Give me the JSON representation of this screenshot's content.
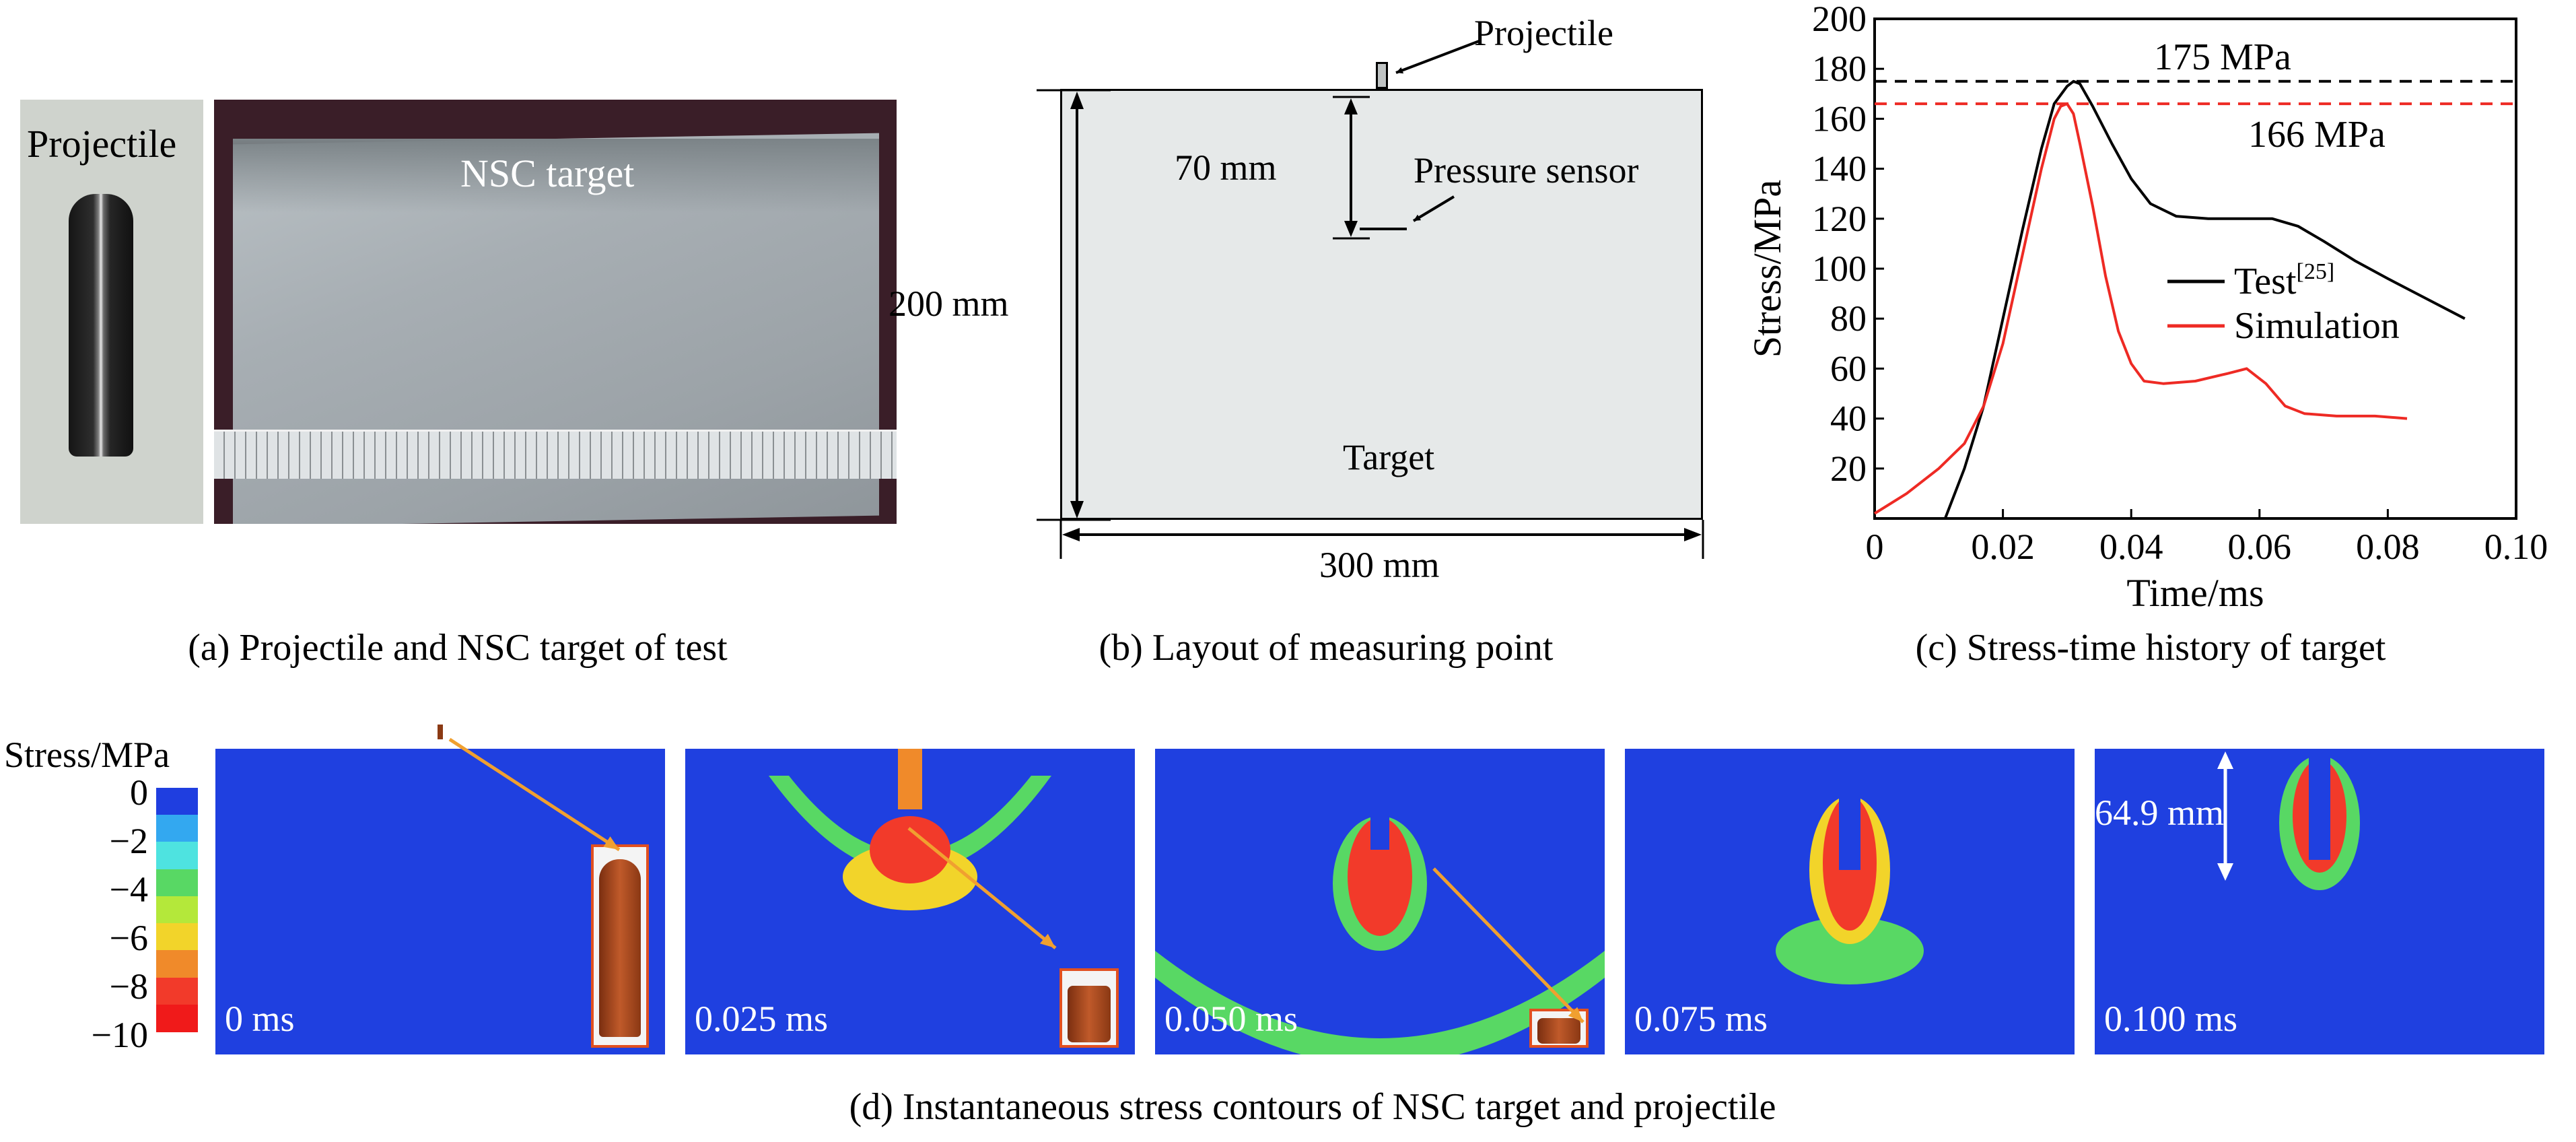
{
  "panel_a": {
    "projectile_label": "Projectile",
    "target_label": "NSC target",
    "caption": "(a) Projectile and NSC target of test"
  },
  "panel_b": {
    "projectile_label": "Projectile",
    "sensor_label": "Pressure sensor",
    "depth_label": "70 mm",
    "height_label": "200 mm",
    "width_label": "300 mm",
    "target_label": "Target",
    "caption": "(b) Layout of measuring point"
  },
  "panel_c": {
    "caption": "(c) Stress-time history of target"
  },
  "chart_data": {
    "type": "line",
    "xlabel": "Time/ms",
    "ylabel": "Stress/MPa",
    "xlim": [
      0,
      0.1
    ],
    "ylim": [
      0,
      200
    ],
    "xticks": [
      "0",
      "0.02",
      "0.04",
      "0.06",
      "0.08",
      "0.10"
    ],
    "yticks": [
      "20",
      "40",
      "60",
      "80",
      "100",
      "120",
      "140",
      "160",
      "180",
      "200"
    ],
    "legend_position": "right",
    "series": [
      {
        "name": "Test",
        "name_superscript": "[25]",
        "color": "#000000",
        "x": [
          0.011,
          0.014,
          0.017,
          0.02,
          0.023,
          0.026,
          0.028,
          0.03,
          0.031,
          0.032,
          0.034,
          0.037,
          0.04,
          0.043,
          0.047,
          0.052,
          0.057,
          0.062,
          0.066,
          0.07,
          0.075,
          0.08,
          0.086,
          0.092
        ],
        "y": [
          0,
          20,
          45,
          80,
          115,
          148,
          166,
          173,
          175,
          174,
          165,
          150,
          136,
          126,
          121,
          120,
          120,
          120,
          117,
          111,
          103,
          96,
          88,
          80
        ]
      },
      {
        "name": "Simulation",
        "color": "#ee2a24",
        "x": [
          0.0,
          0.005,
          0.01,
          0.014,
          0.017,
          0.02,
          0.023,
          0.026,
          0.028,
          0.029,
          0.03,
          0.031,
          0.032,
          0.034,
          0.036,
          0.038,
          0.04,
          0.042,
          0.045,
          0.05,
          0.055,
          0.058,
          0.061,
          0.064,
          0.067,
          0.072,
          0.078,
          0.083
        ],
        "y": [
          2,
          10,
          20,
          30,
          45,
          70,
          105,
          140,
          160,
          165,
          166,
          162,
          150,
          125,
          97,
          75,
          62,
          55,
          54,
          55,
          58,
          60,
          54,
          45,
          42,
          41,
          41,
          40
        ]
      }
    ],
    "reference_lines": [
      {
        "value": 175,
        "label": "175 MPa",
        "color": "#000000"
      },
      {
        "value": 166,
        "label": "166 MPa",
        "color": "#ee2a24"
      }
    ]
  },
  "panel_d": {
    "colorbar_title": "Stress/MPa",
    "colorbar_ticks": [
      "0",
      "−2",
      "−4",
      "−6",
      "−8",
      "−10"
    ],
    "colorbar_colors": [
      "#1f3ee0",
      "#33a8f0",
      "#4ee3e0",
      "#58d864",
      "#b4e83a",
      "#f2d42a",
      "#f08a2a",
      "#f23a2a",
      "#f01a1a"
    ],
    "time_labels": [
      "0 ms",
      "0.025 ms",
      "0.050 ms",
      "0.075 ms",
      "0.100 ms"
    ],
    "depth_label": "64.9 mm",
    "caption": "(d) Instantaneous stress contours of NSC target and projectile"
  }
}
